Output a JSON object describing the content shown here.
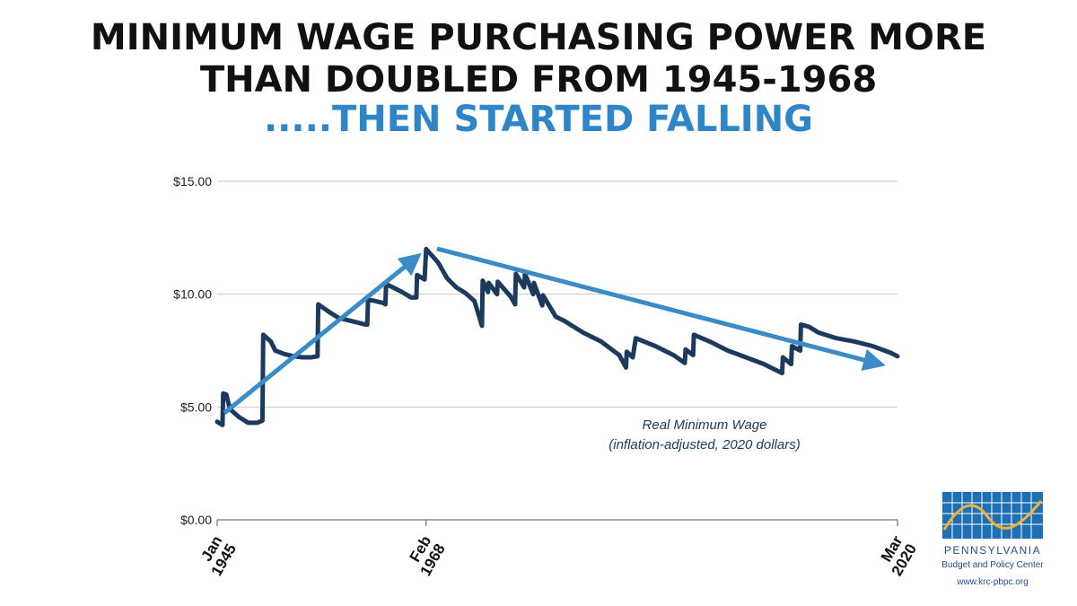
{
  "chart_data": {
    "type": "line",
    "title": [
      "MINIMUM WAGE PURCHASING POWER MORE",
      "THAN DOUBLED FROM 1945-1968",
      ".....THEN STARTED FALLING"
    ],
    "annotation": "(inflation-adjusted, 2020 dollars)",
    "x": [
      "1945-01",
      "1945-08",
      "1945-09",
      "1946-01",
      "1946-06",
      "1947-06",
      "1948-06",
      "1949-06",
      "1950-01",
      "1950-02",
      "1950-12",
      "1951-06",
      "1952-06",
      "1953-06",
      "1954-06",
      "1955-06",
      "1956-02",
      "1956-03",
      "1957-06",
      "1958-06",
      "1959-06",
      "1960-06",
      "1961-06",
      "1961-08",
      "1961-09",
      "1962-06",
      "1963-06",
      "1963-08",
      "1963-09",
      "1964-06",
      "1965-06",
      "1966-06",
      "1967-01",
      "1967-02",
      "1967-12",
      "1968-02",
      "1969-06",
      "1970-06",
      "1971-06",
      "1972-06",
      "1973-06",
      "1974-04",
      "1974-05",
      "1974-12",
      "1975-01",
      "1975-12",
      "1976-01",
      "1977-06",
      "1977-12",
      "1978-01",
      "1978-12",
      "1979-01",
      "1979-12",
      "1980-01",
      "1980-12",
      "1981-01",
      "1982-06",
      "1983-06",
      "1985-06",
      "1987-06",
      "1989-06",
      "1990-03",
      "1990-04",
      "1990-12",
      "1991-04",
      "1993-06",
      "1995-06",
      "1996-09",
      "1996-10",
      "1997-08",
      "1997-09",
      "1999-06",
      "2001-06",
      "2003-06",
      "2005-06",
      "2007-06",
      "2007-07",
      "2008-06",
      "2008-07",
      "2009-06",
      "2009-07",
      "2010-06",
      "2011-06",
      "2013-06",
      "2015-06",
      "2017-06",
      "2019-06",
      "2020-03"
    ],
    "series": [
      {
        "name": "Real Minimum Wage",
        "color": "#1b3a5e",
        "values": [
          4.35,
          4.2,
          5.6,
          5.55,
          4.9,
          4.55,
          4.3,
          4.3,
          4.4,
          8.2,
          7.9,
          7.5,
          7.35,
          7.25,
          7.2,
          7.2,
          7.25,
          9.55,
          9.2,
          8.95,
          8.85,
          8.75,
          8.65,
          8.65,
          9.75,
          9.7,
          9.6,
          9.55,
          10.45,
          10.3,
          10.1,
          9.85,
          9.85,
          10.85,
          10.65,
          12.0,
          11.4,
          10.7,
          10.3,
          10.05,
          9.7,
          8.6,
          10.6,
          10.1,
          10.5,
          10.0,
          10.55,
          9.9,
          9.55,
          10.9,
          10.3,
          10.9,
          10.0,
          10.5,
          9.5,
          9.95,
          9.0,
          8.8,
          8.3,
          7.9,
          7.3,
          6.75,
          7.45,
          7.2,
          8.05,
          7.7,
          7.3,
          6.95,
          7.55,
          7.3,
          8.2,
          7.9,
          7.5,
          7.2,
          6.9,
          6.5,
          7.2,
          6.9,
          7.7,
          7.5,
          8.65,
          8.55,
          8.3,
          8.05,
          7.9,
          7.7,
          7.4,
          7.25
        ]
      }
    ],
    "xlim": [
      "1945-01",
      "2020-03"
    ],
    "xticks": [
      {
        "value": "1945-01",
        "label": [
          "Jan",
          "1945"
        ]
      },
      {
        "value": "1968-02",
        "label": [
          "Feb",
          "1968"
        ]
      },
      {
        "value": "2020-03",
        "label": [
          "Mar",
          "2020"
        ]
      }
    ],
    "ylim": [
      0,
      15
    ],
    "yticks": [
      {
        "value": 0,
        "label": "$0.00"
      },
      {
        "value": 5,
        "label": "$5.00"
      },
      {
        "value": 10,
        "label": "$10.00"
      },
      {
        "value": 15,
        "label": "$15.00"
      }
    ],
    "grid": true
  },
  "logo": {
    "name": "PENNSYLVANIA",
    "subtitle": "Budget and Policy Center",
    "url": "www.krc-pbpc.org"
  }
}
